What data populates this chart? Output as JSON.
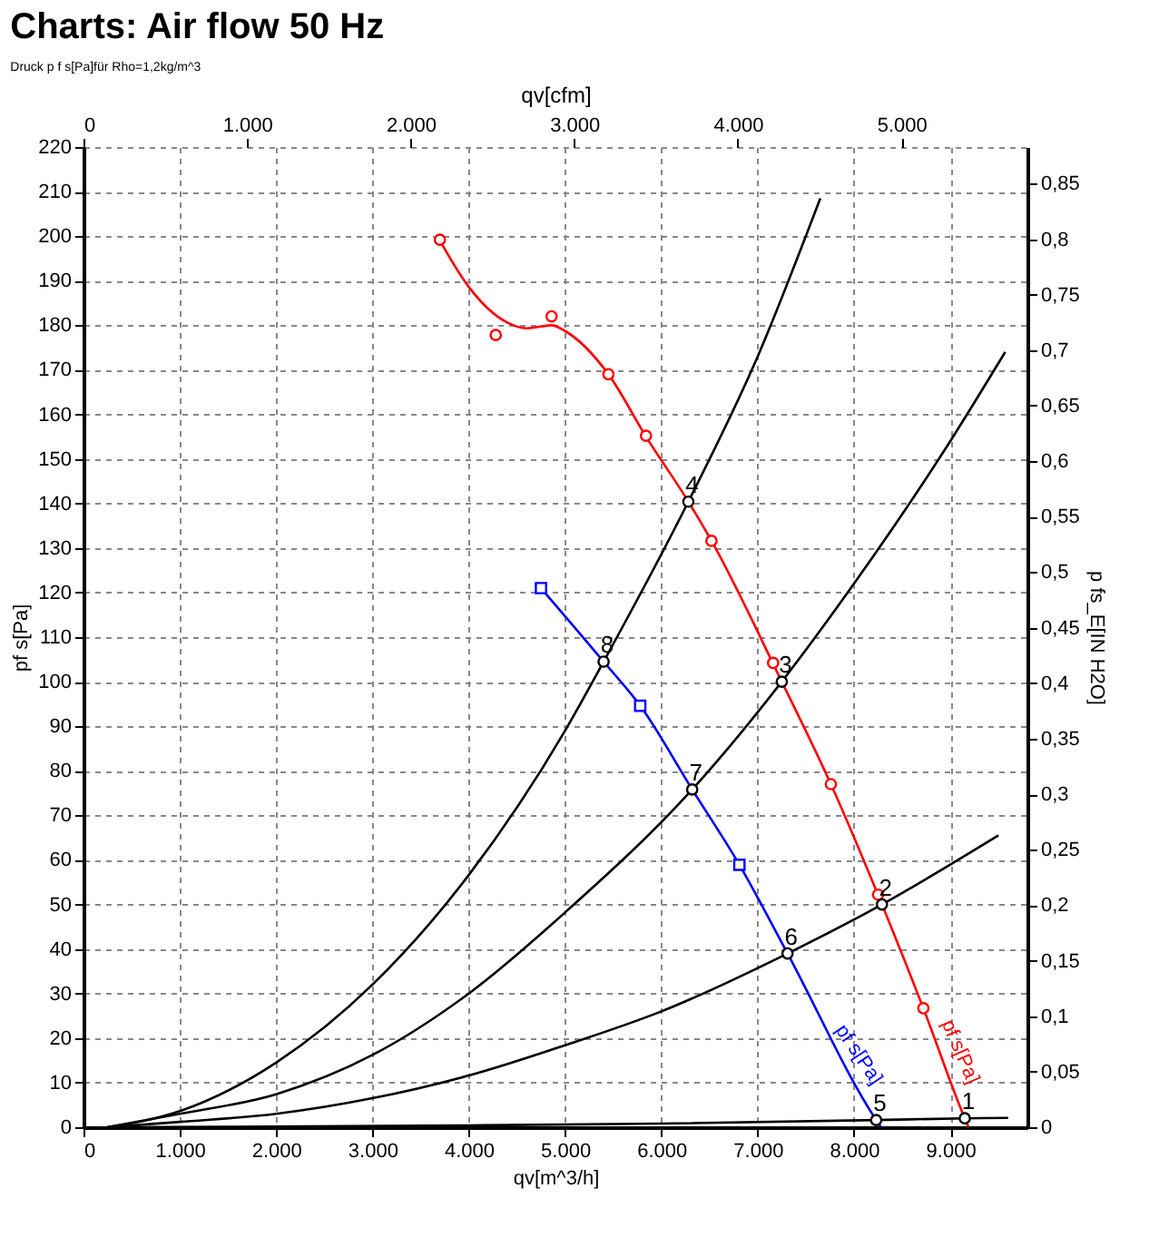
{
  "chart_data": {
    "type": "line",
    "title": "Charts: Air flow 50 Hz",
    "xlabel": "qv[m^3/h]",
    "ylabel": "pf s[Pa]",
    "y2label": "p fs_E[IN H2O]",
    "x2label": "qv[cfm]",
    "xlim": [
      0,
      9800
    ],
    "ylim": [
      0,
      220
    ],
    "y2lim": [
      0,
      0.883
    ],
    "x2lim": [
      0,
      5770
    ],
    "xticks": [
      0,
      {
        "value": 1000,
        "label": "1.000"
      },
      {
        "value": 2000,
        "label": "2.000"
      },
      {
        "value": 3000,
        "label": "3.000"
      },
      {
        "value": 4000,
        "label": "4.000"
      },
      {
        "value": 5000,
        "label": "5.000"
      },
      {
        "value": 6000,
        "label": "6.000"
      },
      {
        "value": 7000,
        "label": "7.000"
      },
      {
        "value": 8000,
        "label": "8.000"
      },
      {
        "value": 9000,
        "label": "9.000"
      }
    ],
    "x2ticks": [
      0,
      {
        "value": 1000,
        "label": "1.000"
      },
      {
        "value": 2000,
        "label": "2.000"
      },
      {
        "value": 3000,
        "label": "3.000"
      },
      {
        "value": 4000,
        "label": "4.000"
      },
      {
        "value": 5000,
        "label": "5.000"
      }
    ],
    "yticks": [
      0,
      10,
      20,
      30,
      40,
      50,
      60,
      70,
      80,
      90,
      100,
      110,
      120,
      130,
      140,
      150,
      160,
      170,
      180,
      190,
      200,
      210,
      220
    ],
    "y2ticks": [
      {
        "value": 0,
        "label": "0"
      },
      {
        "value": 0.05,
        "label": "0,05"
      },
      {
        "value": 0.1,
        "label": "0,1"
      },
      {
        "value": 0.15,
        "label": "0,15"
      },
      {
        "value": 0.2,
        "label": "0,2"
      },
      {
        "value": 0.25,
        "label": "0,25"
      },
      {
        "value": 0.3,
        "label": "0,3"
      },
      {
        "value": 0.35,
        "label": "0,35"
      },
      {
        "value": 0.4,
        "label": "0,4"
      },
      {
        "value": 0.45,
        "label": "0,45"
      },
      {
        "value": 0.5,
        "label": "0,5"
      },
      {
        "value": 0.55,
        "label": "0,55"
      },
      {
        "value": 0.6,
        "label": "0,6"
      },
      {
        "value": 0.65,
        "label": "0,65"
      },
      {
        "value": 0.7,
        "label": "0,7"
      },
      {
        "value": 0.75,
        "label": "0,75"
      },
      {
        "value": 0.8,
        "label": "0,8"
      },
      {
        "value": 0.85,
        "label": "0,85"
      }
    ],
    "grid": true,
    "line_style": "solid",
    "series": [
      {
        "color": "#000000",
        "marker": "none",
        "x": [
          250,
          1000,
          2000,
          3000,
          4000,
          5000,
          5400,
          6280,
          7000,
          7650
        ],
        "values": [
          0,
          3.6,
          14.5,
          32,
          56.6,
          89,
          104.5,
          140.4,
          173,
          208.5
        ]
      },
      {
        "color": "#000000",
        "marker": "none",
        "x": [
          250,
          1000,
          2000,
          3000,
          4000,
          5000,
          6320,
          7250,
          8000,
          9000,
          9570
        ],
        "values": [
          0,
          3,
          7.4,
          16.2,
          30,
          48.2,
          75.8,
          100,
          122,
          154,
          174
        ]
      },
      {
        "color": "#000000",
        "marker": "none",
        "x": [
          250,
          1000,
          2000,
          3000,
          4000,
          5000,
          6000,
          7310,
          8290,
          9500
        ],
        "values": [
          0,
          1.2,
          3,
          6.5,
          11.6,
          18.4,
          26,
          39,
          50,
          65.5
        ]
      },
      {
        "color": "#000000",
        "marker": "none",
        "x": [
          250,
          4000,
          6000,
          8230,
          9150,
          9600
        ],
        "values": [
          0,
          0.4,
          0.8,
          1.6,
          2,
          2.1
        ]
      },
      {
        "name": "pf s[Pa]",
        "color": "#ff0000",
        "marker": "none",
        "x": [
          3700,
          4000,
          4400,
          4600,
          4860,
          5000,
          5450,
          5840,
          6280,
          6520,
          7250,
          7760,
          8290,
          8720,
          9150,
          9190
        ],
        "values": [
          199,
          188.6,
          180.6,
          179.3,
          180,
          178.7,
          169,
          155,
          140.4,
          131.6,
          100,
          77,
          50,
          26.7,
          2,
          0
        ]
      },
      {
        "type": "scatter",
        "color": "#ff0000",
        "marker": "circle",
        "x": [
          3700,
          4280,
          4860,
          5450,
          5840,
          6520,
          7160,
          7760,
          8250,
          8720
        ],
        "values": [
          199.2,
          177.8,
          182,
          169,
          155.2,
          131.6,
          104.2,
          77,
          52.2,
          26.7
        ]
      },
      {
        "name": "pf s[Pa]",
        "color": "#0000ff",
        "marker": "none",
        "x": [
          4750,
          5400,
          5780,
          6320,
          6810,
          7310,
          8230,
          8280
        ],
        "values": [
          121,
          104.5,
          94.6,
          75.8,
          58.9,
          39,
          1.6,
          0
        ]
      },
      {
        "type": "scatter",
        "color": "#0000ff",
        "marker": "square",
        "x": [
          4750,
          5780,
          6810
        ],
        "values": [
          121,
          94.6,
          58.9
        ]
      },
      {
        "type": "scatter",
        "color": "#000000",
        "marker": "circle",
        "x": [
          9150,
          8290,
          7250,
          6280,
          8230,
          7310,
          6320,
          5400
        ],
        "values": [
          2,
          50,
          100,
          140.4,
          1.6,
          39,
          75.8,
          104.5
        ]
      }
    ],
    "annotations": [
      "Druck p f s[Pa]für Rho=1,2kg/m^3",
      {
        "text": "1",
        "x": 9150,
        "y": 2
      },
      {
        "text": "2",
        "x": 8290,
        "y": 50
      },
      {
        "text": "3",
        "x": 7250,
        "y": 100
      },
      {
        "text": "4",
        "x": 6280,
        "y": 140.4
      },
      {
        "text": "5",
        "x": 8230,
        "y": 1.6
      },
      {
        "text": "6",
        "x": 7310,
        "y": 39
      },
      {
        "text": "7",
        "x": 6320,
        "y": 75.8
      },
      {
        "text": "8",
        "x": 5400,
        "y": 104.5
      }
    ]
  }
}
